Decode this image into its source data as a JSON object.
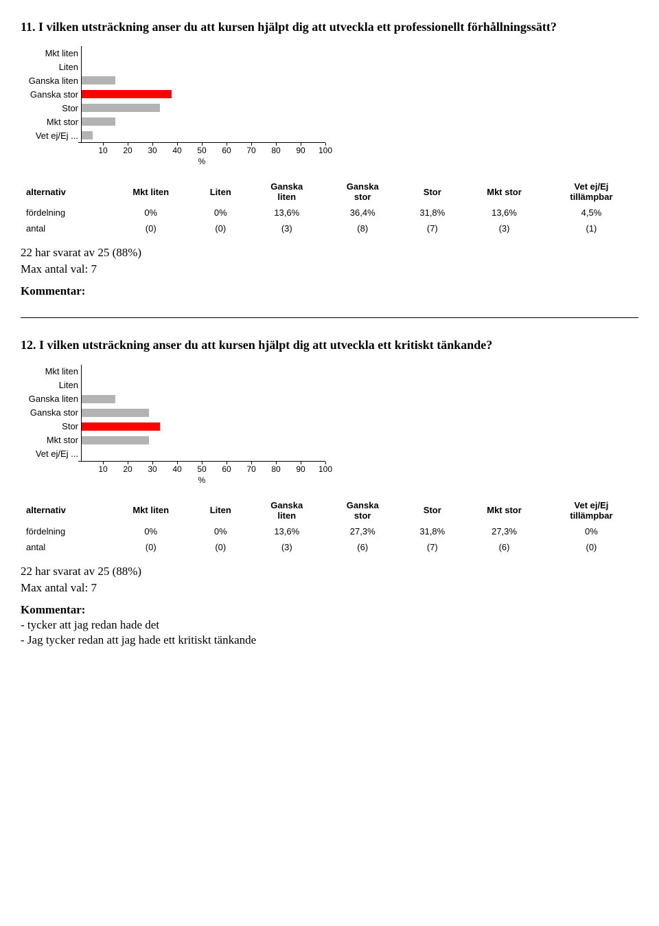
{
  "q11": {
    "title": "11. I vilken utsträckning anser du att kursen hjälpt dig att utveckla ett professionellt förhållningssätt?",
    "chart": {
      "categories": [
        "Mkt liten",
        "Liten",
        "Ganska liten",
        "Ganska stor",
        "Stor",
        "Mkt stor",
        "Vet ej/Ej ..."
      ],
      "values": [
        0,
        0,
        13.6,
        36.4,
        31.8,
        13.6,
        4.5
      ],
      "bar_colors": [
        "#b3b3b3",
        "#b3b3b3",
        "#b3b3b3",
        "#ff0000",
        "#b3b3b3",
        "#b3b3b3",
        "#b3b3b3"
      ],
      "xmax": 100,
      "xtick_step": 10,
      "xticks": [
        10,
        20,
        30,
        40,
        50,
        60,
        70,
        80,
        90,
        100
      ],
      "unit_label": "%"
    },
    "table": {
      "row_labels": [
        "alternativ",
        "fördelning",
        "antal"
      ],
      "columns": [
        "Mkt liten",
        "Liten",
        "Ganska\nliten",
        "Ganska\nstor",
        "Stor",
        "Mkt stor",
        "Vet ej/Ej\ntillämpbar"
      ],
      "fordelning": [
        "0%",
        "0%",
        "13,6%",
        "36,4%",
        "31,8%",
        "13,6%",
        "4,5%"
      ],
      "antal": [
        "(0)",
        "(0)",
        "(3)",
        "(8)",
        "(7)",
        "(3)",
        "(1)"
      ]
    },
    "meta": {
      "svarat": "22 har svarat av 25 (88%)",
      "maxval": "Max antal val: 7"
    },
    "kommentar_label": "Kommentar:"
  },
  "q12": {
    "title": "12. I vilken utsträckning anser du att kursen hjälpt dig att utveckla ett kritiskt tänkande?",
    "chart": {
      "categories": [
        "Mkt liten",
        "Liten",
        "Ganska liten",
        "Ganska stor",
        "Stor",
        "Mkt stor",
        "Vet ej/Ej ..."
      ],
      "values": [
        0,
        0,
        13.6,
        27.3,
        31.8,
        27.3,
        0
      ],
      "bar_colors": [
        "#b3b3b3",
        "#b3b3b3",
        "#b3b3b3",
        "#b3b3b3",
        "#ff0000",
        "#b3b3b3",
        "#b3b3b3"
      ],
      "xmax": 100,
      "xtick_step": 10,
      "xticks": [
        10,
        20,
        30,
        40,
        50,
        60,
        70,
        80,
        90,
        100
      ],
      "unit_label": "%"
    },
    "table": {
      "row_labels": [
        "alternativ",
        "fördelning",
        "antal"
      ],
      "columns": [
        "Mkt liten",
        "Liten",
        "Ganska\nliten",
        "Ganska\nstor",
        "Stor",
        "Mkt stor",
        "Vet ej/Ej\ntillämpbar"
      ],
      "fordelning": [
        "0%",
        "0%",
        "13,6%",
        "27,3%",
        "31,8%",
        "27,3%",
        "0%"
      ],
      "antal": [
        "(0)",
        "(0)",
        "(3)",
        "(6)",
        "(7)",
        "(6)",
        "(0)"
      ]
    },
    "meta": {
      "svarat": "22 har svarat av 25 (88%)",
      "maxval": "Max antal val: 7"
    },
    "kommentar_label": "Kommentar:",
    "kommentar_lines": [
      "- tycker att jag redan hade det",
      "- Jag tycker redan att jag hade ett kritiskt tänkande"
    ]
  }
}
